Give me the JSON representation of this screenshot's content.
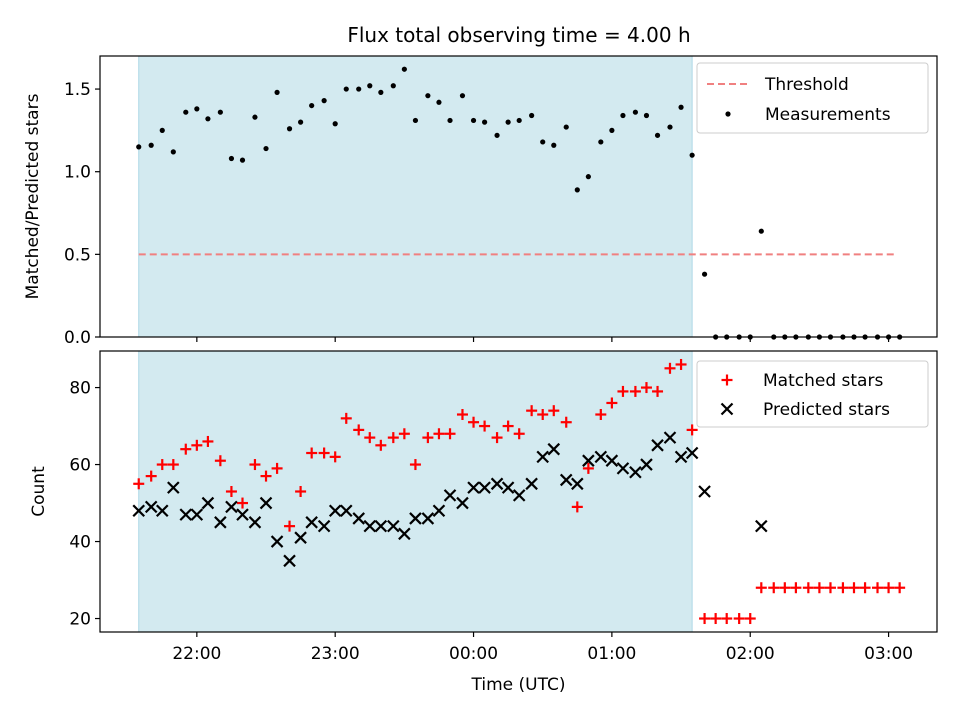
{
  "chart_data": {
    "title": "Flux total observing time = 4.00 h",
    "xlabel": "Time (UTC)",
    "x_tick_labels": [
      "22:00",
      "23:00",
      "00:00",
      "01:00",
      "02:00",
      "03:00"
    ],
    "x_tick_hours": [
      22,
      23,
      24,
      25,
      26,
      27
    ],
    "xlim_hours": [
      21.3,
      27.35
    ],
    "shaded_region_hours": [
      21.58,
      25.58
    ],
    "shade_color": "#d3eaf0",
    "times_hours": [
      21.58,
      21.67,
      21.75,
      21.83,
      21.92,
      22.0,
      22.08,
      22.17,
      22.25,
      22.33,
      22.42,
      22.5,
      22.58,
      22.67,
      22.75,
      22.83,
      22.92,
      23.0,
      23.08,
      23.17,
      23.25,
      23.33,
      23.42,
      23.5,
      23.58,
      23.67,
      23.75,
      23.83,
      23.92,
      24.0,
      24.08,
      24.17,
      24.25,
      24.33,
      24.42,
      24.5,
      24.58,
      24.67,
      24.75,
      24.83,
      24.92,
      25.0,
      25.08,
      25.17,
      25.25,
      25.33,
      25.42,
      25.5,
      25.58,
      25.67,
      25.75,
      25.83,
      25.92,
      26.0,
      26.08,
      26.17,
      26.25,
      26.33,
      26.42,
      26.5,
      26.58,
      26.67,
      26.75,
      26.83,
      26.92,
      27.0,
      27.08
    ],
    "panels": [
      {
        "type": "scatter",
        "ylabel": "Matched/Predicted stars",
        "ylim": [
          0,
          1.7
        ],
        "y_ticks": [
          0.0,
          0.5,
          1.0,
          1.5
        ],
        "y_tick_labels": [
          "0.0",
          "0.5",
          "1.0",
          "1.5"
        ],
        "threshold": {
          "name": "Threshold",
          "value": 0.5,
          "color": "#f08080",
          "style": "dashed",
          "x_range_hours": [
            21.58,
            27.05
          ]
        },
        "series": [
          {
            "name": "Measurements",
            "marker": "dot",
            "color": "#000000",
            "values": [
              1.15,
              1.16,
              1.25,
              1.12,
              1.36,
              1.38,
              1.32,
              1.36,
              1.08,
              1.07,
              1.33,
              1.14,
              1.48,
              1.26,
              1.3,
              1.4,
              1.43,
              1.29,
              1.5,
              1.5,
              1.52,
              1.48,
              1.52,
              1.62,
              1.31,
              1.46,
              1.42,
              1.31,
              1.46,
              1.31,
              1.3,
              1.22,
              1.3,
              1.31,
              1.34,
              1.18,
              1.16,
              1.27,
              0.89,
              0.97,
              1.18,
              1.25,
              1.34,
              1.36,
              1.34,
              1.22,
              1.27,
              1.39,
              1.1,
              0.38,
              0.0,
              0.0,
              0.0,
              0.0,
              0.64,
              0.0,
              0.0,
              0.0,
              0.0,
              0.0,
              0.0,
              0.0,
              0.0,
              0.0,
              0.0,
              0.0,
              0.0
            ]
          }
        ],
        "legend": {
          "placement": "upper right",
          "entries": [
            "Threshold",
            "Measurements"
          ]
        }
      },
      {
        "type": "scatter",
        "ylabel": "Count",
        "ylim": [
          16.5,
          89.5
        ],
        "y_ticks": [
          20,
          40,
          60,
          80
        ],
        "y_tick_labels": [
          "20",
          "40",
          "60",
          "80"
        ],
        "series": [
          {
            "name": "Matched stars",
            "marker": "plus",
            "color": "#ff0000",
            "values": [
              55,
              57,
              60,
              60,
              64,
              65,
              66,
              61,
              53,
              50,
              60,
              57,
              59,
              44,
              53,
              63,
              63,
              62,
              72,
              69,
              67,
              65,
              67,
              68,
              60,
              67,
              68,
              68,
              73,
              71,
              70,
              67,
              70,
              68,
              74,
              73,
              74,
              71,
              49,
              59,
              73,
              76,
              79,
              79,
              80,
              79,
              85,
              86,
              69,
              20,
              20,
              20,
              20,
              20,
              28,
              28,
              28,
              28,
              28,
              28,
              28,
              28,
              28,
              28,
              28,
              28,
              28
            ]
          },
          {
            "name": "Predicted stars",
            "marker": "x",
            "color": "#000000",
            "values": [
              48,
              49,
              48,
              54,
              47,
              47,
              50,
              45,
              49,
              47,
              45,
              50,
              40,
              35,
              41,
              45,
              44,
              48,
              48,
              46,
              44,
              44,
              44,
              42,
              46,
              46,
              48,
              52,
              50,
              54,
              54,
              55,
              54,
              52,
              55,
              62,
              64,
              56,
              55,
              61,
              62,
              61,
              59,
              58,
              60,
              65,
              67,
              62,
              63,
              53,
              null,
              null,
              null,
              null,
              44,
              null,
              null,
              null,
              null,
              null,
              null,
              null,
              null,
              null,
              null,
              null,
              null
            ]
          }
        ],
        "legend": {
          "placement": "upper right",
          "entries": [
            "Matched stars",
            "Predicted stars"
          ]
        }
      }
    ]
  }
}
